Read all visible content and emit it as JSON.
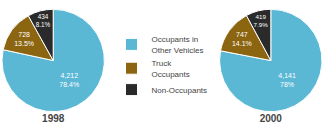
{
  "chart_data": [
    {
      "type": "pie",
      "title": "1998",
      "categories": [
        "Occupants in\nOther Vehicles",
        "Truck\nOccupants",
        "Non-Occupants"
      ],
      "values": [
        4212,
        728,
        434
      ],
      "percentages": [
        78.4,
        13.5,
        8.1
      ],
      "value_labels": [
        "4,212\n78.4%",
        "728\n13.5%",
        "434\n8.1%"
      ],
      "colors": [
        "#5ab8d5",
        "#8b6510",
        "#2a2a2a"
      ],
      "data_labels": true,
      "legend": "center"
    },
    {
      "type": "pie",
      "title": "2000",
      "categories": [
        "Occupants in\nOther Vehicles",
        "Truck\nOccupants",
        "Non-Occupants"
      ],
      "values": [
        4141,
        747,
        419
      ],
      "percentages": [
        78,
        14.1,
        7.9
      ],
      "value_labels": [
        "4,141\n78%",
        "747\n14.1%",
        "419\n7.9%"
      ],
      "colors": [
        "#5ab8d5",
        "#8b6510",
        "#2a2a2a"
      ],
      "data_labels": true,
      "legend": "center"
    }
  ]
}
